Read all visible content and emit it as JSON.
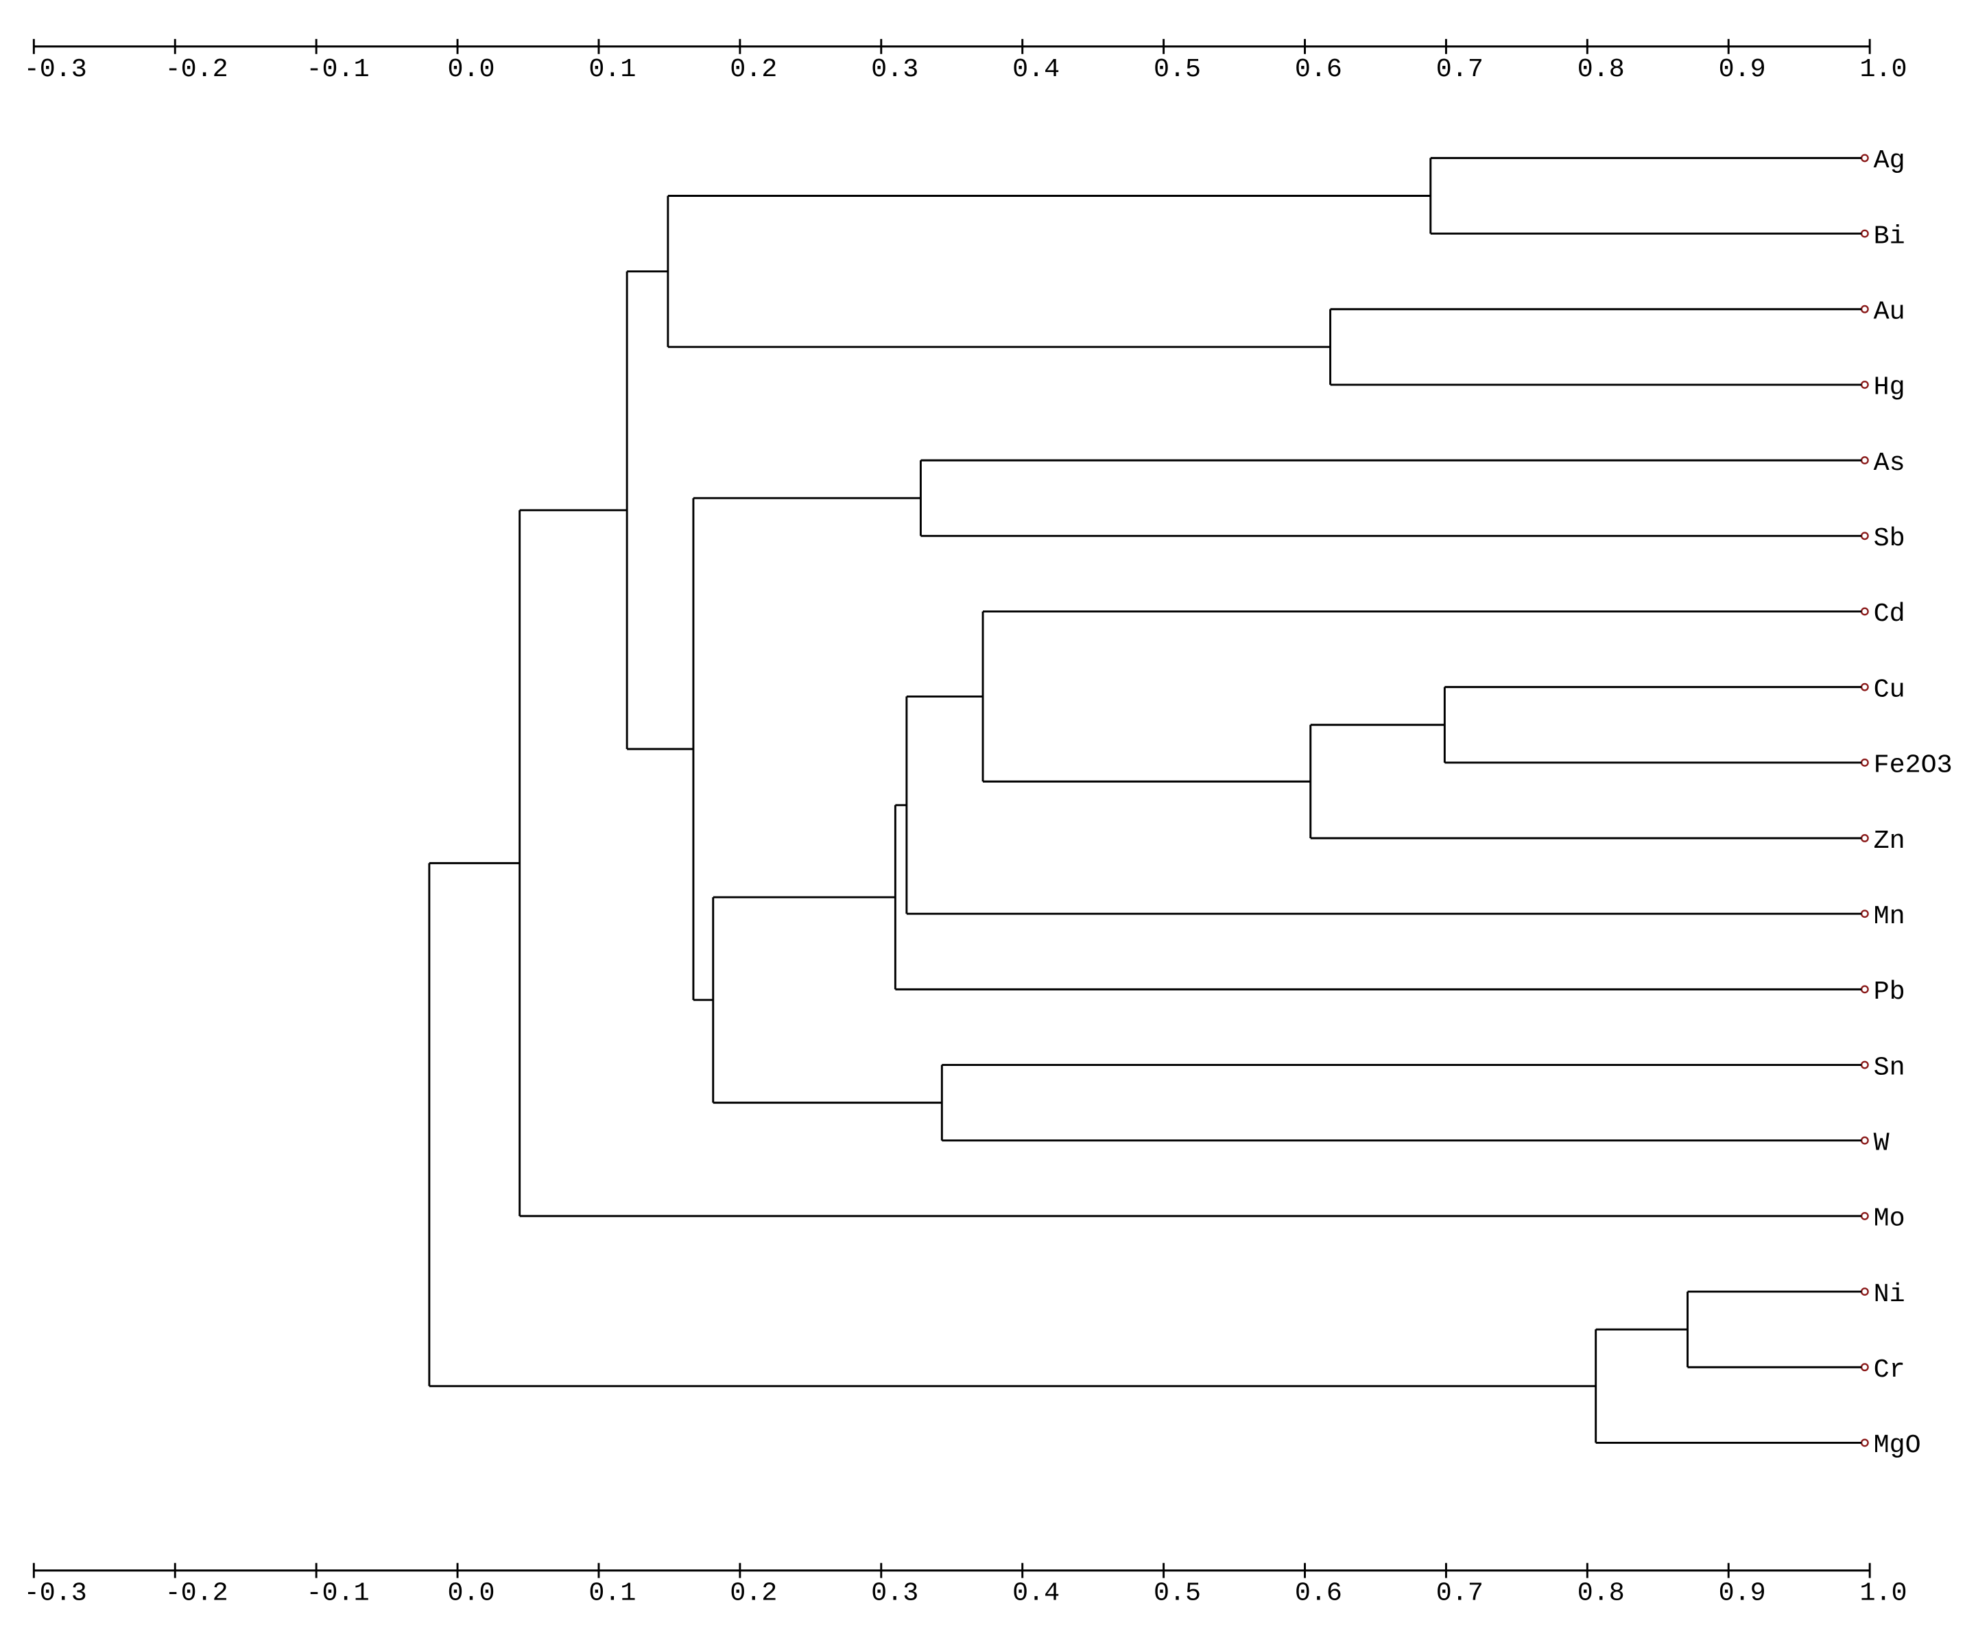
{
  "chart_data": {
    "type": "dendrogram",
    "xlim": [
      -0.3,
      1.0
    ],
    "xticks": [
      -0.3,
      -0.2,
      -0.1,
      {
        "value": 0,
        "label": "0.0"
      },
      0.1,
      0.2,
      0.3,
      0.4,
      0.5,
      0.6,
      0.7,
      0.8,
      0.9,
      {
        "value": 1,
        "label": "1.0"
      }
    ],
    "tree": {
      "height": -0.02,
      "children": [
        {
          "height": 0.044,
          "children": [
            {
              "height": 0.12,
              "children": [
                {
                  "height": 0.149,
                  "children": [
                    {
                      "height": 0.689,
                      "children": [
                        {
                          "label": "Ag"
                        },
                        {
                          "label": "Bi"
                        }
                      ]
                    },
                    {
                      "height": 0.618,
                      "children": [
                        {
                          "label": "Au"
                        },
                        {
                          "label": "Hg"
                        }
                      ]
                    }
                  ]
                },
                {
                  "height": 0.167,
                  "children": [
                    {
                      "height": 0.328,
                      "children": [
                        {
                          "label": "As"
                        },
                        {
                          "label": "Sb"
                        }
                      ]
                    },
                    {
                      "height": 0.181,
                      "children": [
                        {
                          "height": 0.31,
                          "children": [
                            {
                              "height": 0.318,
                              "children": [
                                {
                                  "height": 0.372,
                                  "children": [
                                    {
                                      "label": "Cd"
                                    },
                                    {
                                      "height": 0.604,
                                      "children": [
                                        {
                                          "height": 0.699,
                                          "children": [
                                            {
                                              "label": "Cu"
                                            },
                                            {
                                              "label": "Fe2O3"
                                            }
                                          ]
                                        },
                                        {
                                          "label": "Zn"
                                        }
                                      ]
                                    }
                                  ]
                                },
                                {
                                  "label": "Mn"
                                }
                              ]
                            },
                            {
                              "label": "Pb"
                            }
                          ]
                        },
                        {
                          "height": 0.343,
                          "children": [
                            {
                              "label": "Sn"
                            },
                            {
                              "label": "W"
                            }
                          ]
                        }
                      ]
                    }
                  ]
                }
              ]
            },
            {
              "label": "Mo"
            }
          ]
        },
        {
          "height": 0.806,
          "children": [
            {
              "height": 0.871,
              "children": [
                {
                  "label": "Ni"
                },
                {
                  "label": "Cr"
                }
              ]
            },
            {
              "label": "MgO"
            }
          ]
        }
      ]
    }
  }
}
